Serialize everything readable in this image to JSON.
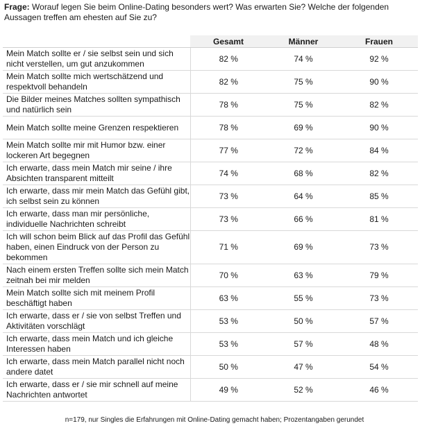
{
  "question": {
    "label": "Frage:",
    "text": "Worauf legen Sie beim Online-Dating besonders wert? Was erwarten Sie? Welche der folgenden Aussagen treffen am ehesten auf Sie zu?"
  },
  "table": {
    "headers": {
      "statement": "",
      "gesamt": "Gesamt",
      "maenner": "Männer",
      "frauen": "Frauen"
    },
    "rows": [
      {
        "statement": "Mein Match sollte er / sie selbst sein und sich nicht verstellen, um gut anzukommen",
        "gesamt": "82 %",
        "maenner": "74 %",
        "frauen": "92 %"
      },
      {
        "statement": "Mein Match sollte mich wertschätzend und respektvoll behandeln",
        "gesamt": "82 %",
        "maenner": "75 %",
        "frauen": "90 %"
      },
      {
        "statement": "Die Bilder meines Matches sollten sympathisch und natürlich sein",
        "gesamt": "78 %",
        "maenner": "75 %",
        "frauen": "82 %"
      },
      {
        "statement": "Mein Match sollte meine Grenzen respektieren",
        "gesamt": "78 %",
        "maenner": "69 %",
        "frauen": "90 %"
      },
      {
        "statement": "Mein Match sollte mir mit Humor bzw. einer lockeren Art begegnen",
        "gesamt": "77 %",
        "maenner": "72 %",
        "frauen": "84 %"
      },
      {
        "statement": "Ich erwarte, dass mein Match mir seine / ihre Absichten transparent mitteilt",
        "gesamt": "74 %",
        "maenner": "68 %",
        "frauen": "82 %"
      },
      {
        "statement": "Ich erwarte, dass mir mein Match das Gefühl gibt, ich selbst sein zu können",
        "gesamt": "73 %",
        "maenner": "64 %",
        "frauen": "85 %"
      },
      {
        "statement": "Ich erwarte, dass man mir persönliche, individuelle Nachrichten schreibt",
        "gesamt": "73 %",
        "maenner": "66 %",
        "frauen": "81 %"
      },
      {
        "statement": "Ich will schon beim Blick auf das Profil das Gefühl haben, einen Eindruck von der Person zu bekommen",
        "gesamt": "71 %",
        "maenner": "69 %",
        "frauen": "73 %"
      },
      {
        "statement": "Nach einem ersten Treffen sollte sich mein Match zeitnah bei mir melden",
        "gesamt": "70 %",
        "maenner": "63 %",
        "frauen": "79 %"
      },
      {
        "statement": "Mein Match sollte sich mit meinem Profil beschäftigt haben",
        "gesamt": "63 %",
        "maenner": "55 %",
        "frauen": "73 %"
      },
      {
        "statement": "Ich erwarte, dass er / sie von selbst Treffen und Aktivitäten vorschlägt",
        "gesamt": "53 %",
        "maenner": "50 %",
        "frauen": "57 %"
      },
      {
        "statement": "Ich erwarte, dass mein Match und ich gleiche Interessen haben",
        "gesamt": "53 %",
        "maenner": "57 %",
        "frauen": "48 %"
      },
      {
        "statement": "Ich erwarte, dass mein Match parallel nicht noch andere datet",
        "gesamt": "50 %",
        "maenner": "47 %",
        "frauen": "54 %"
      },
      {
        "statement": "Ich erwarte, dass er / sie mir schnell auf meine Nachrichten antwortet",
        "gesamt": "49 %",
        "maenner": "52 %",
        "frauen": "46 %"
      }
    ]
  },
  "footnote": "n=179, nur Singles die Erfahrungen mit Online-Dating gemacht haben; Prozentangaben gerundet"
}
